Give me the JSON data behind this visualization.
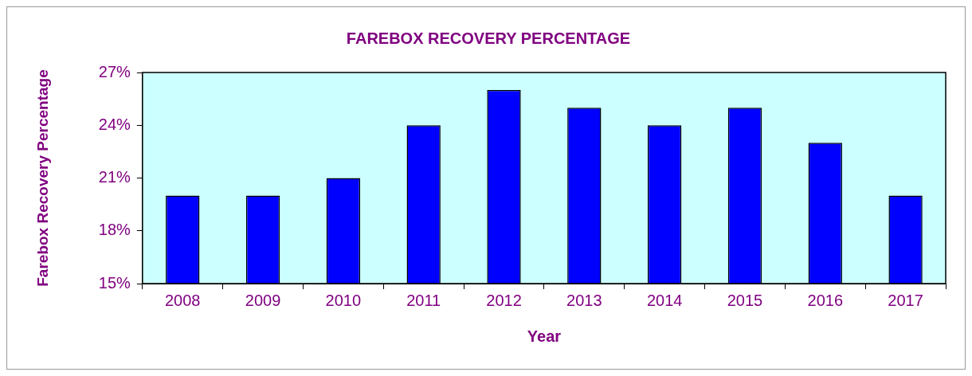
{
  "chart_data": {
    "type": "bar",
    "title": "FAREBOX RECOVERY PERCENTAGE",
    "xlabel": "Year",
    "ylabel": "Farebox Recovery Percentage",
    "categories": [
      "2008",
      "2009",
      "2010",
      "2011",
      "2012",
      "2013",
      "2014",
      "2015",
      "2016",
      "2017"
    ],
    "values": [
      20,
      20,
      21,
      24,
      26,
      25,
      24,
      25,
      23,
      20
    ],
    "color": "#0000ff",
    "ylim": [
      15,
      27
    ],
    "yticks": [
      {
        "value": 15,
        "label": "15%"
      },
      {
        "value": 18,
        "label": "18%"
      },
      {
        "value": 21,
        "label": "21%"
      },
      {
        "value": 24,
        "label": "24%"
      },
      {
        "value": 27,
        "label": "27%"
      }
    ],
    "legend": false
  }
}
